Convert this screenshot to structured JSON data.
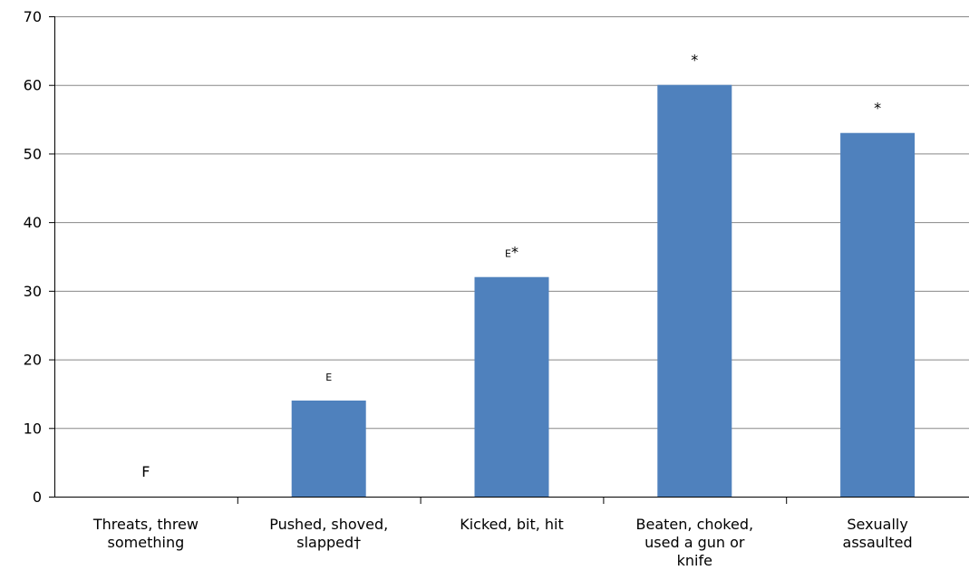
{
  "chart_data": {
    "type": "bar",
    "categories": [
      [
        "Threats, threw",
        "something"
      ],
      [
        "Pushed, shoved,",
        "slapped†"
      ],
      [
        "Kicked, bit, hit"
      ],
      [
        "Beaten, choked,",
        "used a gun or",
        "knife"
      ],
      [
        "Sexually",
        "assaulted"
      ]
    ],
    "values": [
      0,
      14,
      32,
      60,
      53
    ],
    "notes": [
      [
        {
          "text": "F",
          "small": false
        }
      ],
      [
        {
          "text": "E",
          "small": true
        }
      ],
      [
        {
          "text": "E",
          "small": true
        },
        {
          "text": "*",
          "small": false
        }
      ],
      [
        {
          "text": "*",
          "small": false
        }
      ],
      [
        {
          "text": "*",
          "small": false
        }
      ]
    ],
    "ylim": [
      0,
      70
    ],
    "yticks": [
      0,
      10,
      20,
      30,
      40,
      50,
      60,
      70
    ],
    "grid": true,
    "bar_color": "#4f81bd",
    "grid_color": "#888888",
    "axis_color": "#000000",
    "title": "",
    "xlabel": "",
    "ylabel": ""
  }
}
